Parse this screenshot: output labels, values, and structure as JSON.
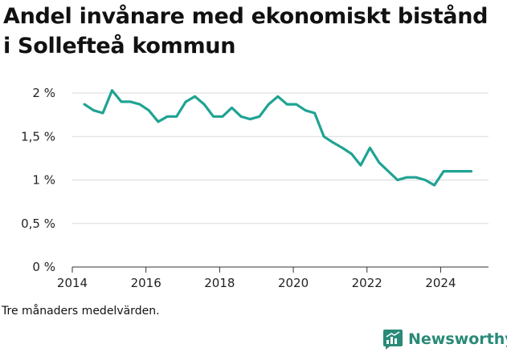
{
  "title": "Andel invånare med ekonomiskt bistånd i Sollefteå kommun",
  "note": "Tre månaders medelvärden.",
  "brand": {
    "name": "Newsworthy",
    "logo_icon": "newsworthy-logo-icon"
  },
  "colors": {
    "line": "#1fa393",
    "grid": "#d9d9d9",
    "axis": "#333333",
    "brand": "#2a8a78"
  },
  "chart_data": {
    "type": "line",
    "title": "Andel invånare med ekonomiskt bistånd i Sollefteå kommun",
    "xlabel": "",
    "ylabel": "",
    "xlim": [
      2014,
      2025.3
    ],
    "ylim": [
      0,
      2
    ],
    "grid": true,
    "x_ticks": [
      {
        "value": 2014,
        "label": "2014"
      },
      {
        "value": 2016,
        "label": "2016"
      },
      {
        "value": 2018,
        "label": "2018"
      },
      {
        "value": 2020,
        "label": "2020"
      },
      {
        "value": 2022,
        "label": "2022"
      },
      {
        "value": 2024,
        "label": "2024"
      }
    ],
    "y_ticks": [
      {
        "value": 0,
        "label": "0 %"
      },
      {
        "value": 0.5,
        "label": "0,5 %"
      },
      {
        "value": 1,
        "label": "1 %"
      },
      {
        "value": 1.5,
        "label": "1,5 %"
      },
      {
        "value": 2,
        "label": "2 %"
      }
    ],
    "series": [
      {
        "color": "#1fa393",
        "points": [
          [
            2014.33,
            1.87
          ],
          [
            2014.58,
            1.8
          ],
          [
            2014.83,
            1.77
          ],
          [
            2015.08,
            2.03
          ],
          [
            2015.33,
            1.9
          ],
          [
            2015.58,
            1.9
          ],
          [
            2015.83,
            1.87
          ],
          [
            2016.08,
            1.8
          ],
          [
            2016.33,
            1.67
          ],
          [
            2016.58,
            1.73
          ],
          [
            2016.83,
            1.73
          ],
          [
            2017.08,
            1.9
          ],
          [
            2017.33,
            1.96
          ],
          [
            2017.58,
            1.87
          ],
          [
            2017.83,
            1.73
          ],
          [
            2018.08,
            1.73
          ],
          [
            2018.33,
            1.83
          ],
          [
            2018.58,
            1.73
          ],
          [
            2018.83,
            1.7
          ],
          [
            2019.08,
            1.73
          ],
          [
            2019.33,
            1.87
          ],
          [
            2019.58,
            1.96
          ],
          [
            2019.83,
            1.87
          ],
          [
            2020.08,
            1.87
          ],
          [
            2020.33,
            1.8
          ],
          [
            2020.58,
            1.77
          ],
          [
            2020.83,
            1.5
          ],
          [
            2021.08,
            1.43
          ],
          [
            2021.33,
            1.37
          ],
          [
            2021.58,
            1.3
          ],
          [
            2021.83,
            1.17
          ],
          [
            2022.08,
            1.37
          ],
          [
            2022.33,
            1.2
          ],
          [
            2022.58,
            1.1
          ],
          [
            2022.83,
            1.0
          ],
          [
            2023.08,
            1.03
          ],
          [
            2023.33,
            1.03
          ],
          [
            2023.58,
            1.0
          ],
          [
            2023.83,
            0.94
          ],
          [
            2024.08,
            1.1
          ],
          [
            2024.33,
            1.1
          ],
          [
            2024.58,
            1.1
          ],
          [
            2024.83,
            1.1
          ]
        ]
      }
    ]
  }
}
